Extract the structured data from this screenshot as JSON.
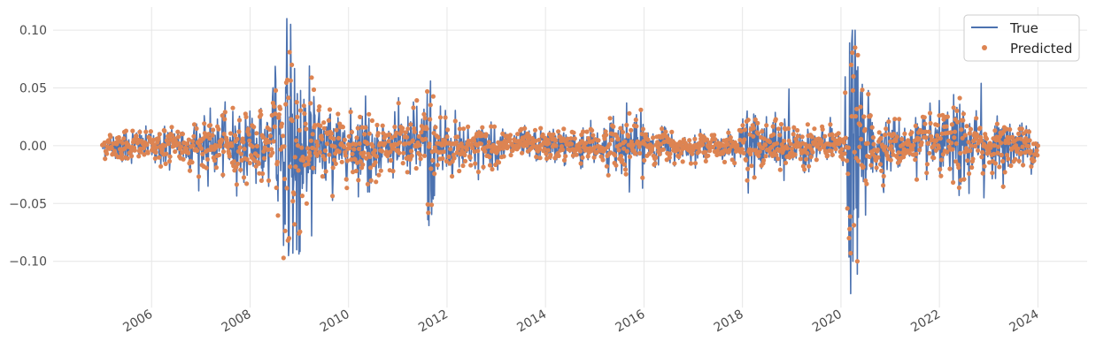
{
  "chart_data": {
    "type": "line",
    "title": "",
    "xlabel": "",
    "ylabel": "",
    "x_range": [
      2005.0,
      2024.0
    ],
    "xlim": [
      2004.0,
      2025.0
    ],
    "ylim": [
      -0.14,
      0.12
    ],
    "x_ticks": [
      {
        "value": 2006,
        "label": "2006"
      },
      {
        "value": 2008,
        "label": "2008"
      },
      {
        "value": 2010,
        "label": "2010"
      },
      {
        "value": 2012,
        "label": "2012"
      },
      {
        "value": 2014,
        "label": "2014"
      },
      {
        "value": 2016,
        "label": "2016"
      },
      {
        "value": 2018,
        "label": "2018"
      },
      {
        "value": 2020,
        "label": "2020"
      },
      {
        "value": 2022,
        "label": "2022"
      },
      {
        "value": 2024,
        "label": "2024"
      }
    ],
    "y_ticks": [
      {
        "value": 0.1,
        "label": "0.10"
      },
      {
        "value": 0.05,
        "label": "0.05"
      },
      {
        "value": 0.0,
        "label": "0.00"
      },
      {
        "value": -0.05,
        "label": "−0.05"
      },
      {
        "value": -0.1,
        "label": "−0.10"
      }
    ],
    "grid": true,
    "legend_position": "top-right",
    "volatility_regimes": [
      [
        2005.0,
        0.006
      ],
      [
        2006.3,
        0.009
      ],
      [
        2007.2,
        0.012
      ],
      [
        2007.9,
        0.016
      ],
      [
        2008.4,
        0.022
      ],
      [
        2008.7,
        0.045
      ],
      [
        2008.85,
        0.06
      ],
      [
        2009.1,
        0.035
      ],
      [
        2009.4,
        0.022
      ],
      [
        2010.0,
        0.013
      ],
      [
        2010.4,
        0.018
      ],
      [
        2010.8,
        0.011
      ],
      [
        2011.5,
        0.018
      ],
      [
        2011.62,
        0.032
      ],
      [
        2011.85,
        0.02
      ],
      [
        2012.3,
        0.012
      ],
      [
        2013.0,
        0.008
      ],
      [
        2014.0,
        0.007
      ],
      [
        2014.8,
        0.009
      ],
      [
        2015.6,
        0.013
      ],
      [
        2016.1,
        0.012
      ],
      [
        2016.6,
        0.008
      ],
      [
        2017.0,
        0.005
      ],
      [
        2018.0,
        0.008
      ],
      [
        2018.1,
        0.016
      ],
      [
        2018.5,
        0.009
      ],
      [
        2018.8,
        0.015
      ],
      [
        2019.1,
        0.009
      ],
      [
        2020.0,
        0.008
      ],
      [
        2020.15,
        0.04
      ],
      [
        2020.25,
        0.06
      ],
      [
        2020.45,
        0.025
      ],
      [
        2020.8,
        0.014
      ],
      [
        2021.3,
        0.01
      ],
      [
        2022.0,
        0.014
      ],
      [
        2022.4,
        0.018
      ],
      [
        2023.0,
        0.012
      ],
      [
        2024.0,
        0.009
      ]
    ],
    "series": [
      {
        "name": "True",
        "color": "#4c72b0",
        "style": "line",
        "extremes": [
          {
            "x": 2008.75,
            "y": 0.11
          },
          {
            "x": 2008.78,
            "y": -0.095
          },
          {
            "x": 2008.82,
            "y": 0.105
          },
          {
            "x": 2008.87,
            "y": -0.093
          },
          {
            "x": 2008.95,
            "y": -0.09
          },
          {
            "x": 2009.2,
            "y": 0.069
          },
          {
            "x": 2009.25,
            "y": -0.078
          },
          {
            "x": 2008.45,
            "y": 0.042
          },
          {
            "x": 2008.55,
            "y": -0.03
          },
          {
            "x": 2011.6,
            "y": 0.046
          },
          {
            "x": 2011.63,
            "y": -0.069
          },
          {
            "x": 2011.72,
            "y": -0.046
          },
          {
            "x": 2010.35,
            "y": 0.043
          },
          {
            "x": 2010.42,
            "y": -0.04
          },
          {
            "x": 2015.65,
            "y": 0.037
          },
          {
            "x": 2015.7,
            "y": -0.04
          },
          {
            "x": 2018.1,
            "y": 0.03
          },
          {
            "x": 2018.12,
            "y": -0.041
          },
          {
            "x": 2018.95,
            "y": 0.049
          },
          {
            "x": 2018.85,
            "y": -0.03
          },
          {
            "x": 2020.17,
            "y": 0.089
          },
          {
            "x": 2020.2,
            "y": -0.128
          },
          {
            "x": 2020.22,
            "y": 0.09
          },
          {
            "x": 2020.24,
            "y": -0.1
          },
          {
            "x": 2020.28,
            "y": 0.066
          },
          {
            "x": 2020.35,
            "y": -0.062
          },
          {
            "x": 2020.5,
            "y": -0.06
          },
          {
            "x": 2022.85,
            "y": 0.054
          },
          {
            "x": 2022.9,
            "y": -0.045
          },
          {
            "x": 2007.15,
            "y": -0.035
          },
          {
            "x": 2008.0,
            "y": 0.03
          }
        ]
      },
      {
        "name": "Predicted",
        "color": "#dd8452",
        "style": "points",
        "extremes": [
          {
            "x": 2008.8,
            "y": 0.081
          },
          {
            "x": 2008.77,
            "y": -0.082
          },
          {
            "x": 2008.85,
            "y": 0.07
          },
          {
            "x": 2009.25,
            "y": 0.059
          },
          {
            "x": 2009.15,
            "y": -0.05
          },
          {
            "x": 2008.9,
            "y": -0.068
          },
          {
            "x": 2011.6,
            "y": 0.047
          },
          {
            "x": 2011.62,
            "y": -0.058
          },
          {
            "x": 2020.2,
            "y": -0.093
          },
          {
            "x": 2020.21,
            "y": 0.07
          },
          {
            "x": 2020.18,
            "y": -0.072
          },
          {
            "x": 2020.25,
            "y": 0.06
          },
          {
            "x": 2018.1,
            "y": -0.03
          },
          {
            "x": 2015.7,
            "y": 0.028
          },
          {
            "x": 2022.5,
            "y": -0.029
          }
        ]
      }
    ]
  }
}
